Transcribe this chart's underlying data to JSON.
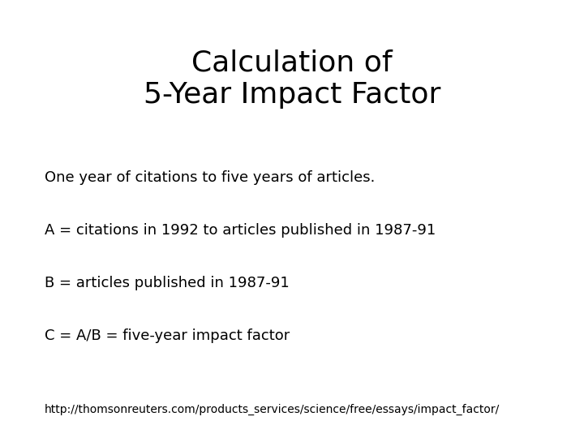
{
  "title_line1": "Calculation of",
  "title_line2": "5-Year Impact Factor",
  "body_lines": [
    "One year of citations to five years of articles.",
    "A = citations in 1992 to articles published in 1987-91",
    "B = articles published in 1987-91",
    "C = A/B = five-year impact factor"
  ],
  "footer": "http://thomsonreuters.com/products_services/science/free/essays/impact_factor/",
  "background_color": "#ffffff",
  "text_color": "#000000",
  "title_fontsize": 26,
  "body_fontsize": 13,
  "footer_fontsize": 10
}
